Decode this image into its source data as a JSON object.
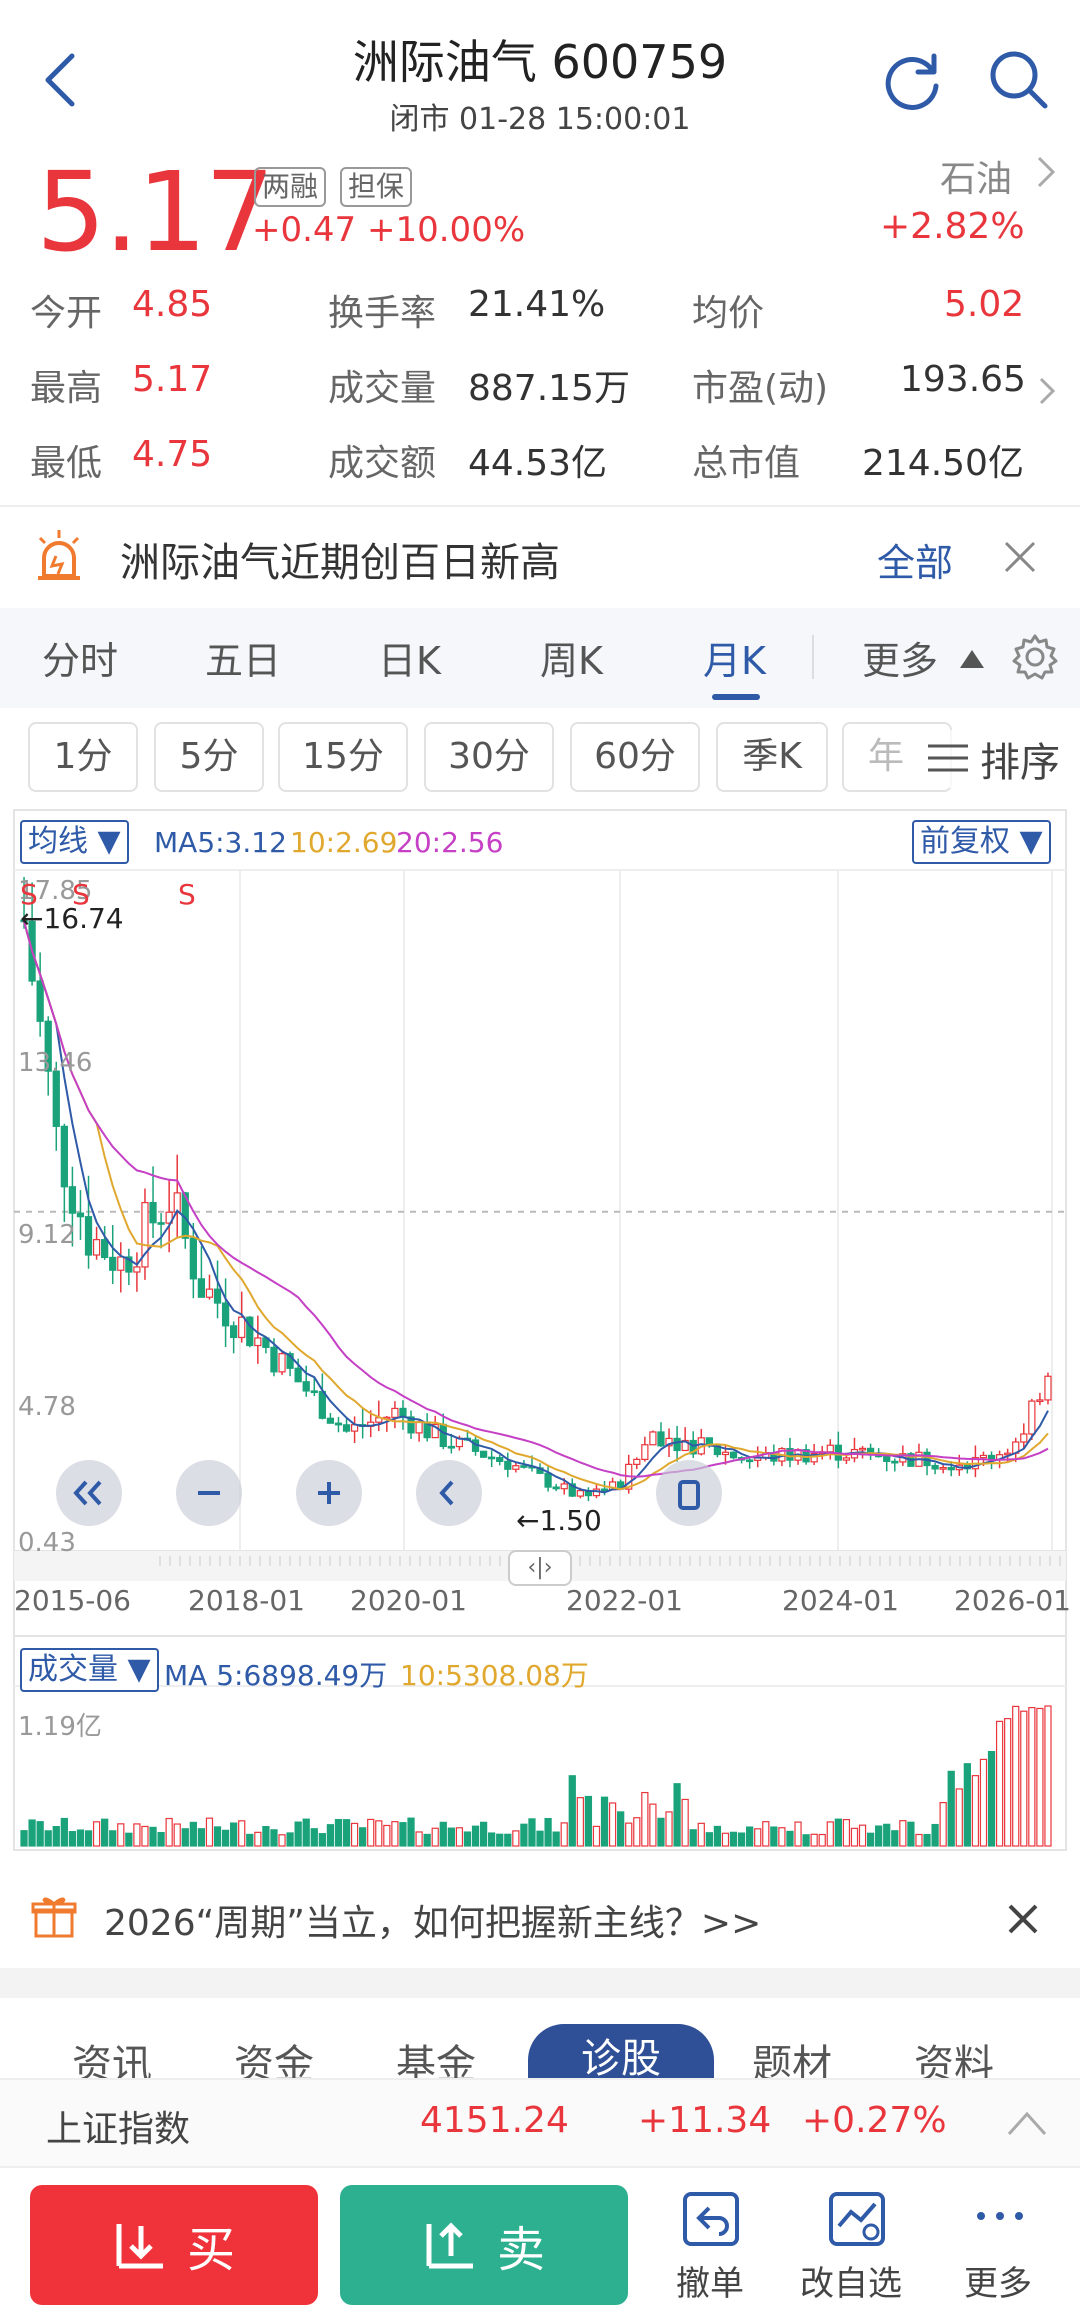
{
  "header": {
    "title": "洲际油气 600759",
    "subtitle": "闭市 01-28 15:00:01"
  },
  "quote": {
    "price": "5.17",
    "tag_margin": "两融",
    "tag_pledge": "担保",
    "change": "+0.47 +10.00%",
    "sector_name": "石油",
    "sector_change": "+2.82%"
  },
  "stats": [
    {
      "label": "今开",
      "value": "4.85"
    },
    {
      "label": "换手率",
      "value": "21.41%"
    },
    {
      "label": "均价",
      "value": "5.02"
    },
    {
      "label": "最高",
      "value": "5.17"
    },
    {
      "label": "成交量",
      "value": "887.15万"
    },
    {
      "label": "市盈(动)",
      "value": "193.65"
    },
    {
      "label": "最低",
      "value": "4.75"
    },
    {
      "label": "成交额",
      "value": "44.53亿"
    },
    {
      "label": "总市值",
      "value": "214.50亿"
    }
  ],
  "alert": {
    "text": "洲际油气近期创百日新高",
    "all": "全部"
  },
  "tabs": [
    "分时",
    "五日",
    "日K",
    "周K",
    "月K",
    "更多"
  ],
  "periods": [
    "1分",
    "5分",
    "15分",
    "30分",
    "60分",
    "季K",
    "年"
  ],
  "sort_label": "排序",
  "chart": {
    "indicator_dd": "均线",
    "adjust_dd": "前复权",
    "ma5": "MA5:3.12",
    "ma10": "10:2.69",
    "ma20": "20:2.56",
    "y_labels": [
      "17.85",
      "13.46",
      "9.12",
      "4.78",
      "0.43"
    ],
    "hi_label": "←16.74",
    "lo_label": "←1.50",
    "x_labels": [
      "2015-06",
      "2018-01",
      "2020-01",
      "2022-01",
      "2024-01",
      "2026-01"
    ],
    "s_marks": [
      "S",
      "S",
      "S"
    ],
    "vol_dd": "成交量",
    "vol_ma5": "MA 5:6898.49万",
    "vol_ma10": "10:5308.08万",
    "vol_max": "1.19亿",
    "colors": {
      "up": "#e8363c",
      "down": "#1aa37a",
      "ma5": "#2f5aa8",
      "ma10": "#e0a82e",
      "ma20": "#c540c5"
    }
  },
  "chart_data": {
    "type": "candlestick",
    "x_range": [
      "2015-06",
      "2026-01"
    ],
    "y_range": [
      0.43,
      17.85
    ],
    "max_price": 16.74,
    "min_price": 1.5,
    "current": 5.17,
    "reference_line": 9.12
  },
  "promo": {
    "text": "2026“周期”当立，如何把握新主线？>>"
  },
  "bottom_tabs": [
    "资讯",
    "资金",
    "基金",
    "诊股",
    "题材",
    "资料"
  ],
  "index": {
    "name": "上证指数",
    "value": "4151.24",
    "change": "+11.34",
    "pct": "+0.27%"
  },
  "actions": {
    "buy": "买",
    "sell": "卖",
    "cancel": "撤单",
    "edit_watch": "改自选",
    "more": "更多"
  }
}
